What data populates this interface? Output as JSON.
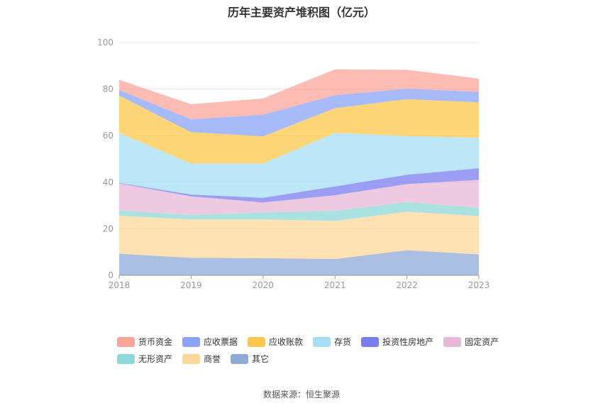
{
  "title": "历年主要资产堆积图（亿元）",
  "source": "数据来源：恒生聚源",
  "chart_data": {
    "type": "area",
    "stacked": true,
    "title": "历年主要资产堆积图（亿元）",
    "x": [
      "2018",
      "2019",
      "2020",
      "2021",
      "2022",
      "2023"
    ],
    "ylim": [
      0,
      100
    ],
    "yticks": [
      0,
      20,
      40,
      60,
      80,
      100
    ],
    "grid": true,
    "legend_position": "bottom",
    "series": [
      {
        "name": "其它",
        "color": "#8eaad8",
        "values": [
          9.3,
          7.5,
          7.4,
          7.0,
          10.8,
          9.0
        ]
      },
      {
        "name": "商誉",
        "color": "#fdd89a",
        "values": [
          16.3,
          16.5,
          16.6,
          16.4,
          16.5,
          16.5
        ]
      },
      {
        "name": "无形资产",
        "color": "#8dd8d8",
        "values": [
          2.3,
          1.9,
          3.0,
          4.3,
          4.2,
          3.5
        ]
      },
      {
        "name": "固定资产",
        "color": "#e8b8d8",
        "values": [
          11.6,
          8.0,
          4.3,
          6.7,
          7.7,
          12.0
        ]
      },
      {
        "name": "投资性房地产",
        "color": "#7b7ef0",
        "values": [
          0.2,
          0.8,
          2.0,
          3.8,
          4.0,
          5.0
        ]
      },
      {
        "name": "存货",
        "color": "#a5dff7",
        "values": [
          21.5,
          13.3,
          14.7,
          23.0,
          16.6,
          13.1
        ]
      },
      {
        "name": "应收账款",
        "color": "#fdc84a",
        "values": [
          16.0,
          13.5,
          11.7,
          10.6,
          15.9,
          15.2
        ]
      },
      {
        "name": "应收票据",
        "color": "#8aa3f8",
        "values": [
          2.5,
          5.5,
          9.3,
          5.6,
          4.5,
          4.5
        ]
      },
      {
        "name": "货币资金",
        "color": "#fba49a",
        "values": [
          4.3,
          6.5,
          7.0,
          11.1,
          8.1,
          5.7
        ]
      }
    ],
    "legend_order": [
      "货币资金",
      "应收票据",
      "应收账款",
      "存货",
      "投资性房地产",
      "固定资产",
      "无形资产",
      "商誉",
      "其它"
    ]
  }
}
